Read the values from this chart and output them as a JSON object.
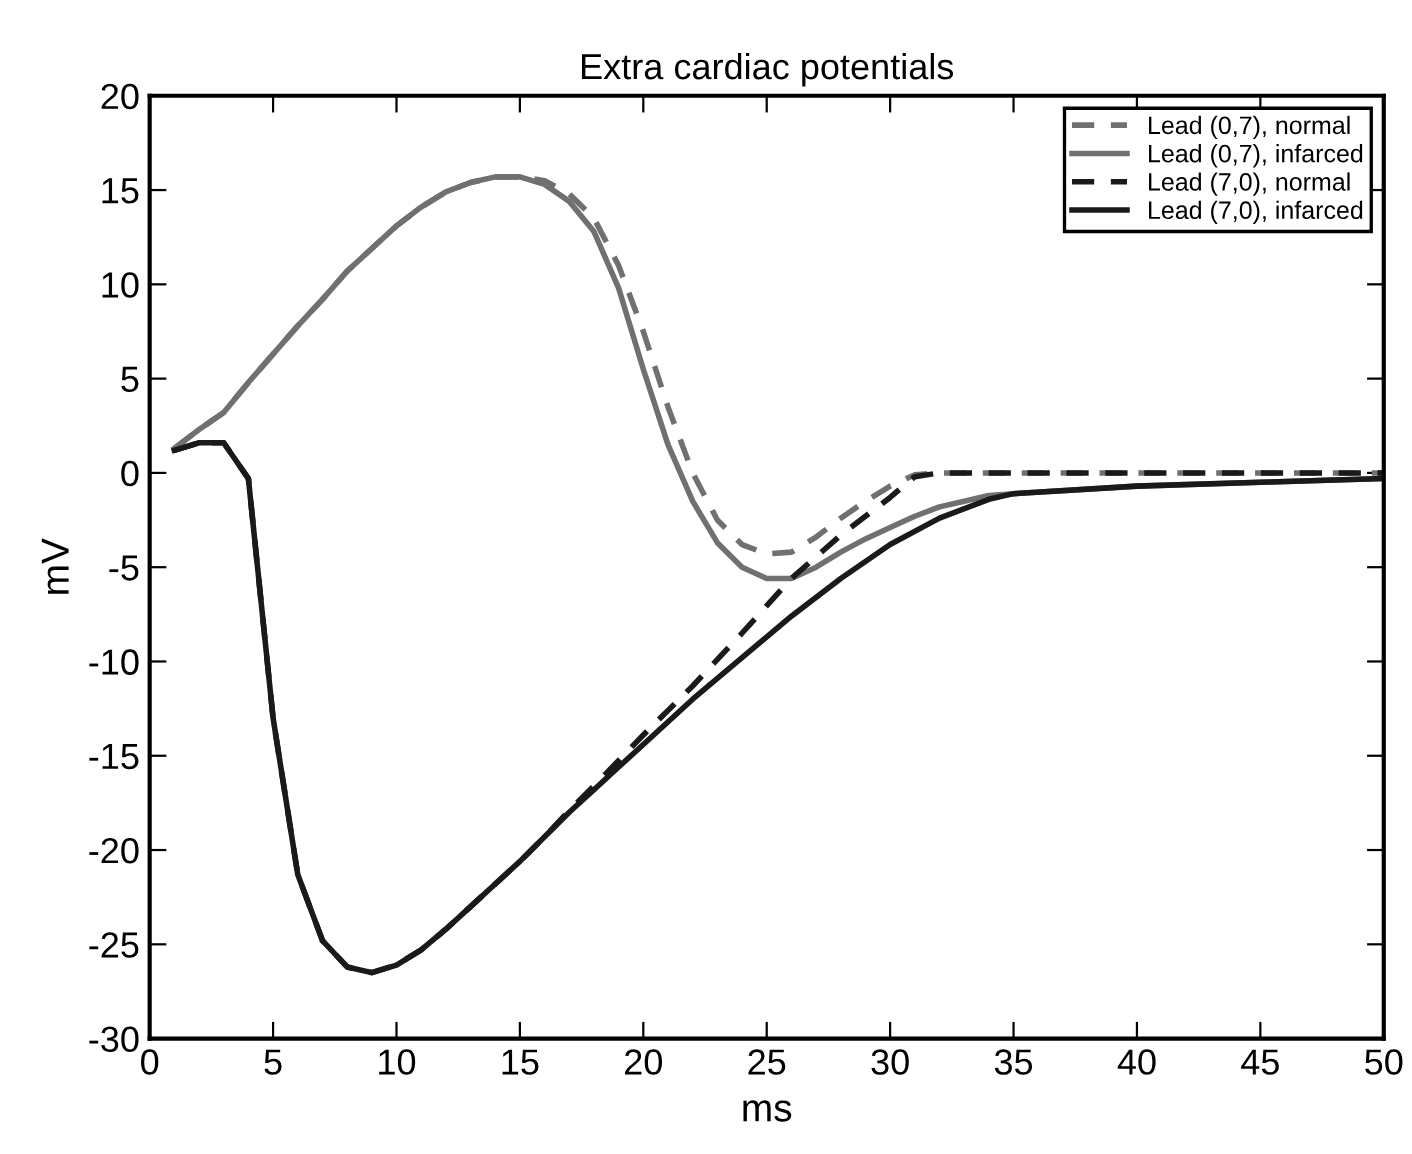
{
  "chart_data": {
    "type": "line",
    "title": "Extra cardiac potentials",
    "xlabel": "ms",
    "ylabel": "mV",
    "xlim": [
      0,
      50
    ],
    "ylim": [
      -30,
      20
    ],
    "xticks": [
      0,
      5,
      10,
      15,
      20,
      25,
      30,
      35,
      40,
      45,
      50
    ],
    "yticks": [
      -30,
      -25,
      -20,
      -15,
      -10,
      -5,
      0,
      5,
      10,
      15,
      20
    ],
    "grid": false,
    "legend": "top right",
    "series": [
      {
        "name": "Lead (0,7), normal",
        "color": "#707070",
        "line_style": "dashed",
        "x": [
          1,
          2,
          3,
          4,
          5,
          6,
          7,
          8,
          9,
          10,
          11,
          12,
          13,
          14,
          15,
          16,
          17,
          18,
          19,
          20,
          21,
          22,
          23,
          24,
          25,
          26,
          27,
          28,
          29,
          30,
          31,
          32,
          50
        ],
        "values": [
          1.3,
          2.3,
          3.2,
          4.8,
          6.3,
          7.8,
          9.2,
          10.7,
          11.9,
          13.1,
          14.1,
          14.9,
          15.4,
          15.7,
          15.7,
          15.5,
          14.8,
          13.5,
          11,
          7.5,
          3.5,
          0,
          -2.5,
          -3.8,
          -4.3,
          -4.2,
          -3.4,
          -2.4,
          -1.5,
          -0.7,
          -0.1,
          0,
          0
        ]
      },
      {
        "name": "Lead (0,7), infarced",
        "color": "#707070",
        "line_style": "solid",
        "x": [
          1,
          2,
          3,
          4,
          5,
          6,
          7,
          8,
          9,
          10,
          11,
          12,
          13,
          14,
          15,
          16,
          17,
          18,
          19,
          20,
          21,
          22,
          23,
          24,
          25,
          26,
          27,
          28,
          29,
          30,
          31,
          32,
          33,
          34,
          35,
          40,
          45,
          50
        ],
        "values": [
          1.3,
          2.3,
          3.2,
          4.8,
          6.3,
          7.8,
          9.2,
          10.7,
          11.9,
          13.1,
          14.1,
          14.9,
          15.4,
          15.7,
          15.7,
          15.3,
          14.4,
          12.8,
          9.8,
          5.5,
          1.5,
          -1.5,
          -3.7,
          -5,
          -5.6,
          -5.6,
          -5,
          -4.2,
          -3.5,
          -2.9,
          -2.3,
          -1.8,
          -1.5,
          -1.2,
          -1.1,
          -0.7,
          -0.5,
          -0.3
        ]
      },
      {
        "name": "Lead (7,0), normal",
        "color": "#1a1a1a",
        "line_style": "dashed",
        "x": [
          1,
          2,
          3,
          4,
          5,
          6,
          7,
          8,
          9,
          10,
          11,
          12,
          13,
          14,
          15,
          16,
          17,
          18,
          20,
          22,
          24,
          26,
          28,
          30,
          31,
          32,
          50
        ],
        "values": [
          1.2,
          1.6,
          1.6,
          -0.3,
          -13,
          -21.3,
          -24.8,
          -26.2,
          -26.5,
          -26.1,
          -25.3,
          -24.2,
          -23,
          -21.8,
          -20.6,
          -19.3,
          -17.9,
          -16.6,
          -13.9,
          -11.3,
          -8.5,
          -5.6,
          -3.3,
          -1.3,
          -0.2,
          0,
          0
        ]
      },
      {
        "name": "Lead (7,0), infarced",
        "color": "#1a1a1a",
        "line_style": "solid",
        "x": [
          1,
          2,
          3,
          4,
          5,
          6,
          7,
          8,
          9,
          10,
          11,
          12,
          13,
          14,
          15,
          16,
          17,
          18,
          19,
          20,
          22,
          24,
          26,
          28,
          30,
          32,
          34,
          35,
          40,
          45,
          50
        ],
        "values": [
          1.2,
          1.6,
          1.6,
          -0.3,
          -13,
          -21.3,
          -24.8,
          -26.2,
          -26.5,
          -26.1,
          -25.3,
          -24.2,
          -23,
          -21.8,
          -20.6,
          -19.3,
          -18,
          -16.8,
          -15.6,
          -14.4,
          -12,
          -9.8,
          -7.6,
          -5.6,
          -3.8,
          -2.4,
          -1.4,
          -1.1,
          -0.7,
          -0.5,
          -0.3
        ]
      }
    ]
  }
}
